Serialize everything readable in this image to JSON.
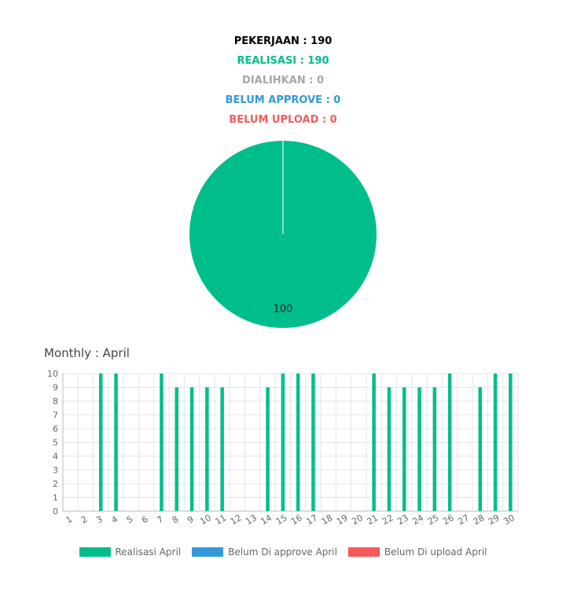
{
  "stats": {
    "pekerjaan": "PEKERJAAN : 190",
    "realisasi": "REALISASI : 190",
    "dialihkan": "DIALIHKAN : 0",
    "belum_approve": "BELUM APPROVE : 0",
    "belum_upload": "BELUM UPLOAD : 0"
  },
  "colors": {
    "realisasi": "#00be8c",
    "dialihkan": "#a6a6a6",
    "belum_approve": "#3399d9",
    "belum_upload": "#f55a5a",
    "pekerjaan": "#000000"
  },
  "monthly": {
    "label": "Monthly : April"
  },
  "chart_data": [
    {
      "type": "pie",
      "slices": [
        {
          "value": 100,
          "label": "100",
          "color": "#00be8c"
        }
      ]
    },
    {
      "type": "bar",
      "categories": [
        "1",
        "2",
        "3",
        "4",
        "5",
        "6",
        "7",
        "8",
        "9",
        "10",
        "11",
        "12",
        "13",
        "14",
        "15",
        "16",
        "17",
        "18",
        "19",
        "20",
        "21",
        "22",
        "23",
        "24",
        "25",
        "26",
        "27",
        "28",
        "29",
        "30"
      ],
      "series": [
        {
          "name": "Realisasi April",
          "color": "#00be8c",
          "values": [
            0,
            0,
            10,
            10,
            0,
            0,
            10,
            9,
            9,
            9,
            9,
            0,
            0,
            9,
            10,
            10,
            10,
            0,
            0,
            0,
            10,
            9,
            9,
            9,
            9,
            10,
            0,
            9,
            10,
            10
          ]
        },
        {
          "name": "Belum Di approve April",
          "color": "#3399d9",
          "values": [
            0,
            0,
            0,
            0,
            0,
            0,
            0,
            0,
            0,
            0,
            0,
            0,
            0,
            0,
            0,
            0,
            0,
            0,
            0,
            0,
            0,
            0,
            0,
            0,
            0,
            0,
            0,
            0,
            0,
            0
          ]
        },
        {
          "name": "Belum Di upload April",
          "color": "#f55a5a",
          "values": [
            0,
            0,
            0,
            0,
            0,
            0,
            0,
            0,
            0,
            0,
            0,
            0,
            0,
            0,
            0,
            0,
            0,
            0,
            0,
            0,
            0,
            0,
            0,
            0,
            0,
            0,
            0,
            0,
            0,
            0
          ]
        }
      ],
      "ylim": [
        0,
        10
      ],
      "yticks": [
        "0",
        "1",
        "2",
        "3",
        "4",
        "5",
        "6",
        "7",
        "8",
        "9",
        "10"
      ],
      "grid": true,
      "legend": "bottom"
    }
  ]
}
